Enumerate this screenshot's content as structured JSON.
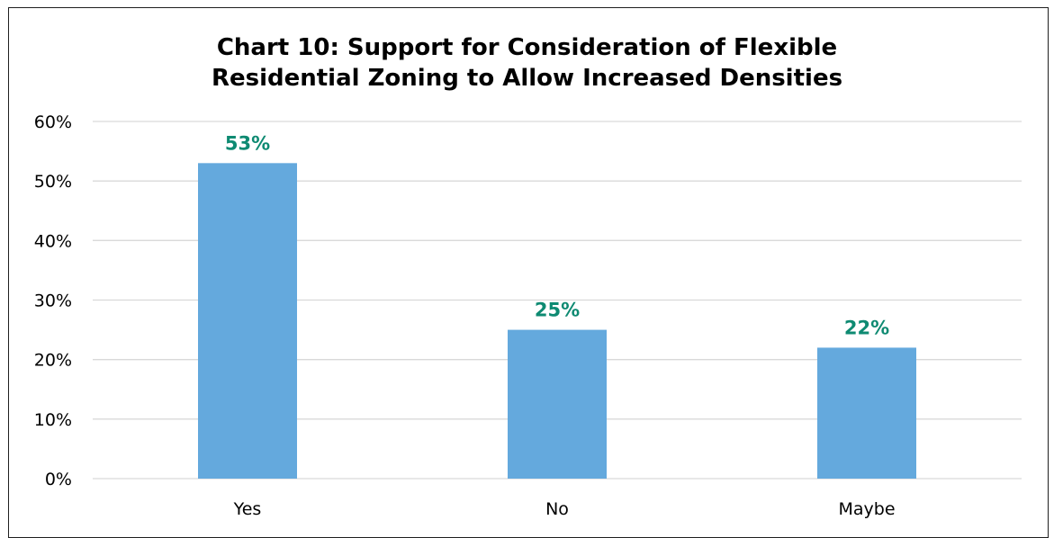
{
  "chart_data": {
    "type": "bar",
    "title_lines": [
      "Chart 10: Support for Consideration of Flexible",
      "Residential Zoning to Allow Increased Densities"
    ],
    "categories": [
      "Yes",
      "No",
      "Maybe"
    ],
    "values": [
      53,
      25,
      22
    ],
    "data_labels": [
      "53%",
      "25%",
      "22%"
    ],
    "ylim": [
      0,
      60
    ],
    "yticks": [
      0,
      10,
      20,
      30,
      40,
      50,
      60
    ],
    "ytick_labels": [
      "0%",
      "10%",
      "20%",
      "30%",
      "40%",
      "50%",
      "60%"
    ],
    "grid": true,
    "legend": "none",
    "xlabel": "",
    "ylabel": ""
  },
  "colors": {
    "bar": "#64a9dd",
    "data_label": "#0e8a72",
    "grid": "#d9d9d9"
  }
}
